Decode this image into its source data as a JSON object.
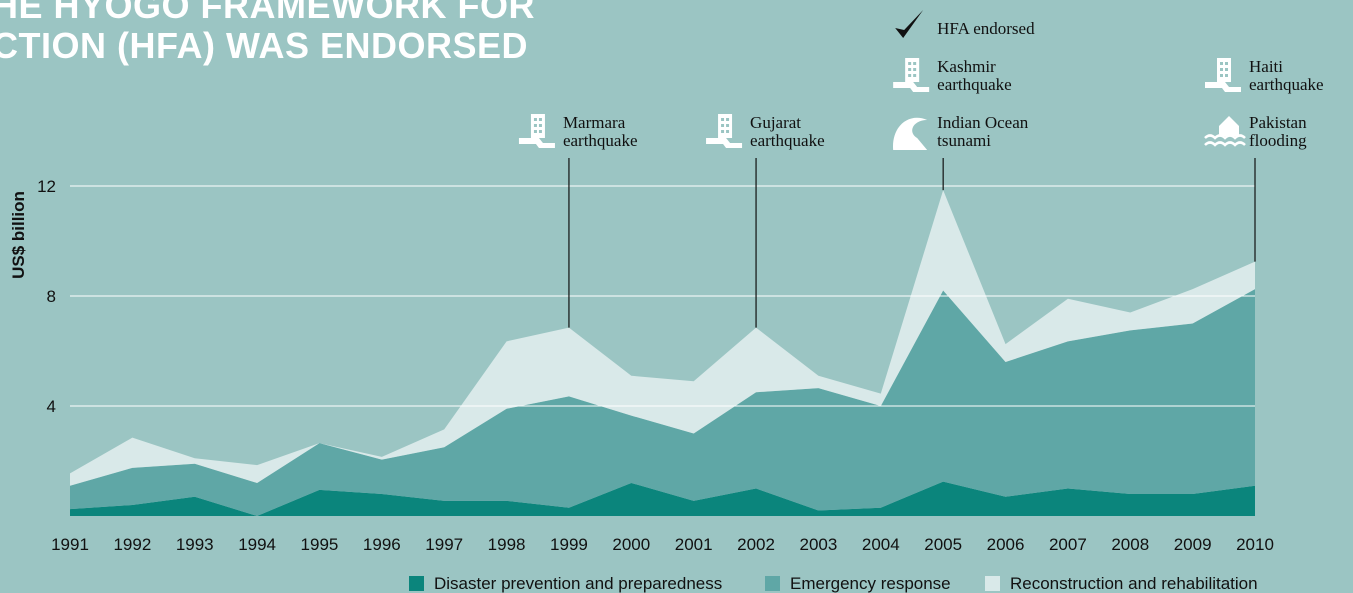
{
  "chart_data": {
    "type": "stacked-area",
    "title_lines": [
      "HE HYOGO FRAMEWORK FOR",
      "CTION (HFA) WAS ENDORSED"
    ],
    "y_label": "US$ billion",
    "categories": [
      "1991",
      "1992",
      "1993",
      "1994",
      "1995",
      "1996",
      "1997",
      "1998",
      "1999",
      "2000",
      "2001",
      "2002",
      "2003",
      "2004",
      "2005",
      "2006",
      "2007",
      "2008",
      "2009",
      "2010"
    ],
    "series": [
      {
        "name": "Disaster prevention and preparedness",
        "color": "#0b857c",
        "values": [
          0.25,
          0.4,
          0.7,
          0,
          0.95,
          0.8,
          0.55,
          0.55,
          0.3,
          1.2,
          0.55,
          1.0,
          0.2,
          0.3,
          1.25,
          0.7,
          1.0,
          0.8,
          0.8,
          1.1
        ]
      },
      {
        "name": "Emergency response",
        "color": "#5fa7a6",
        "values": [
          0.85,
          1.35,
          1.2,
          1.2,
          1.7,
          1.25,
          1.95,
          3.35,
          4.05,
          2.45,
          2.45,
          3.5,
          4.45,
          3.7,
          6.95,
          4.9,
          5.35,
          5.95,
          6.2,
          7.15
        ]
      },
      {
        "name": "Reconstruction and rehabilitation",
        "color": "#d9e9e9",
        "values": [
          0.45,
          1.1,
          0.2,
          0.65,
          0,
          0.1,
          0.65,
          2.45,
          2.5,
          1.45,
          1.9,
          2.35,
          0.45,
          0.45,
          3.65,
          0.65,
          1.55,
          0.65,
          1.25,
          1.0
        ]
      }
    ],
    "ylim": [
      0,
      12
    ],
    "yticks": [
      4,
      8,
      12
    ],
    "grid": true,
    "annotations": [
      {
        "x": "1999",
        "labels": [
          {
            "icon": "earthquake",
            "lines": [
              "Marmara",
              "earthquake"
            ]
          }
        ]
      },
      {
        "x": "2002",
        "labels": [
          {
            "icon": "earthquake",
            "lines": [
              "Gujarat",
              "earthquake"
            ]
          }
        ]
      },
      {
        "x": "2005",
        "labels": [
          {
            "icon": "check",
            "lines": [
              "HFA endorsed"
            ]
          },
          {
            "icon": "earthquake",
            "lines": [
              "Kashmir",
              "earthquake"
            ]
          },
          {
            "icon": "tsunami",
            "lines": [
              "Indian Ocean",
              "tsunami"
            ]
          }
        ]
      },
      {
        "x": "2010",
        "labels": [
          {
            "icon": "earthquake",
            "lines": [
              "Haiti",
              "earthquake"
            ]
          },
          {
            "icon": "flood",
            "lines": [
              "Pakistan",
              "flooding"
            ]
          }
        ]
      }
    ]
  }
}
